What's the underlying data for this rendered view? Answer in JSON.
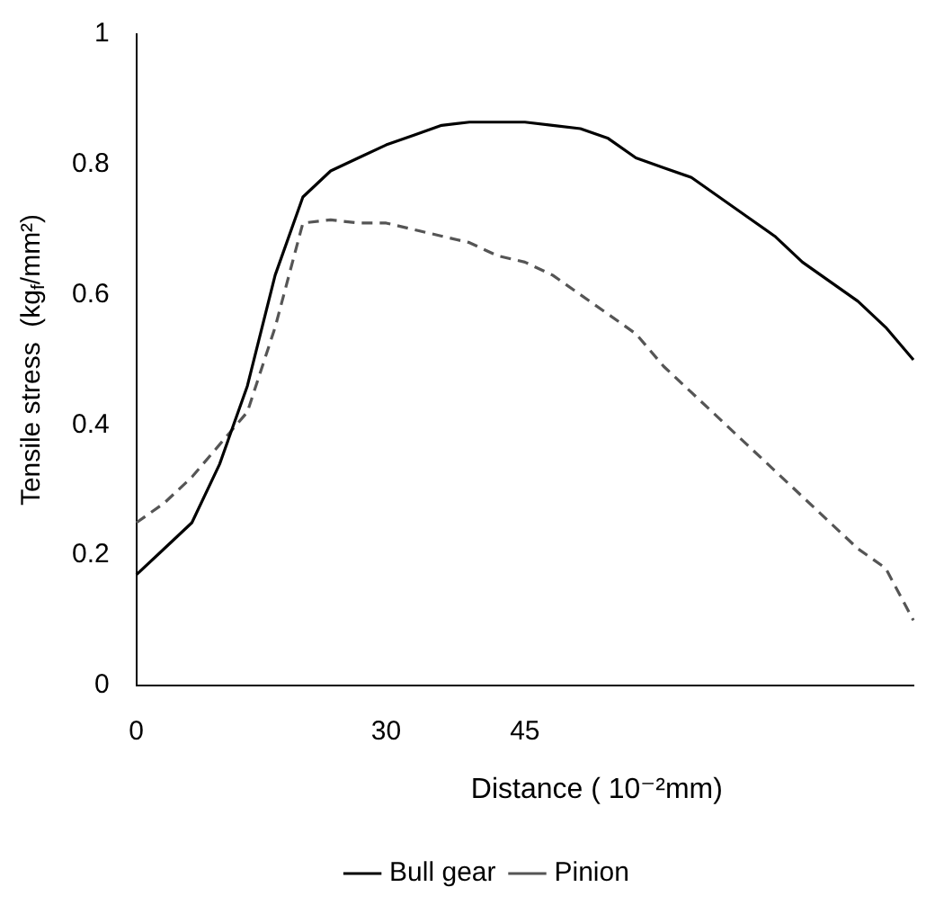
{
  "chart_data": {
    "type": "line",
    "xlabel": "Distance ( 10⁻²mm)",
    "ylabel": "Tensile stress  (kg$_{f}$/mm²)",
    "categories": [
      "0",
      null,
      null,
      null,
      null,
      null,
      null,
      null,
      null,
      "30",
      null,
      null,
      null,
      null,
      "45",
      null,
      null,
      null,
      null,
      null,
      null,
      null,
      null,
      null,
      null,
      null,
      null,
      null,
      null
    ],
    "series": [
      {
        "name": "Bull gear",
        "color": "#000000",
        "line_style": "solid",
        "values": [
          0.17,
          0.21,
          0.25,
          0.34,
          0.46,
          0.63,
          0.75,
          0.79,
          0.81,
          0.83,
          0.845,
          0.86,
          0.865,
          0.865,
          0.865,
          0.86,
          0.855,
          0.84,
          0.81,
          0.795,
          0.78,
          0.75,
          0.72,
          0.69,
          0.65,
          0.62,
          0.59,
          0.55,
          0.5
        ]
      },
      {
        "name": "Pinion",
        "color": "#555555",
        "line_style": "dashed",
        "values": [
          0.25,
          0.28,
          0.32,
          0.37,
          0.42,
          0.55,
          0.71,
          0.715,
          0.71,
          0.71,
          0.7,
          0.69,
          0.68,
          0.66,
          0.65,
          0.63,
          0.6,
          0.57,
          0.54,
          0.49,
          0.45,
          0.41,
          0.37,
          0.33,
          0.29,
          0.25,
          0.21,
          0.18,
          0.1
        ]
      }
    ],
    "ylim": [
      0,
      1
    ],
    "yticks": [
      0,
      0.2,
      0.4,
      0.6,
      0.8,
      1
    ],
    "grid": false,
    "legend": "bottom",
    "marker": "none"
  }
}
